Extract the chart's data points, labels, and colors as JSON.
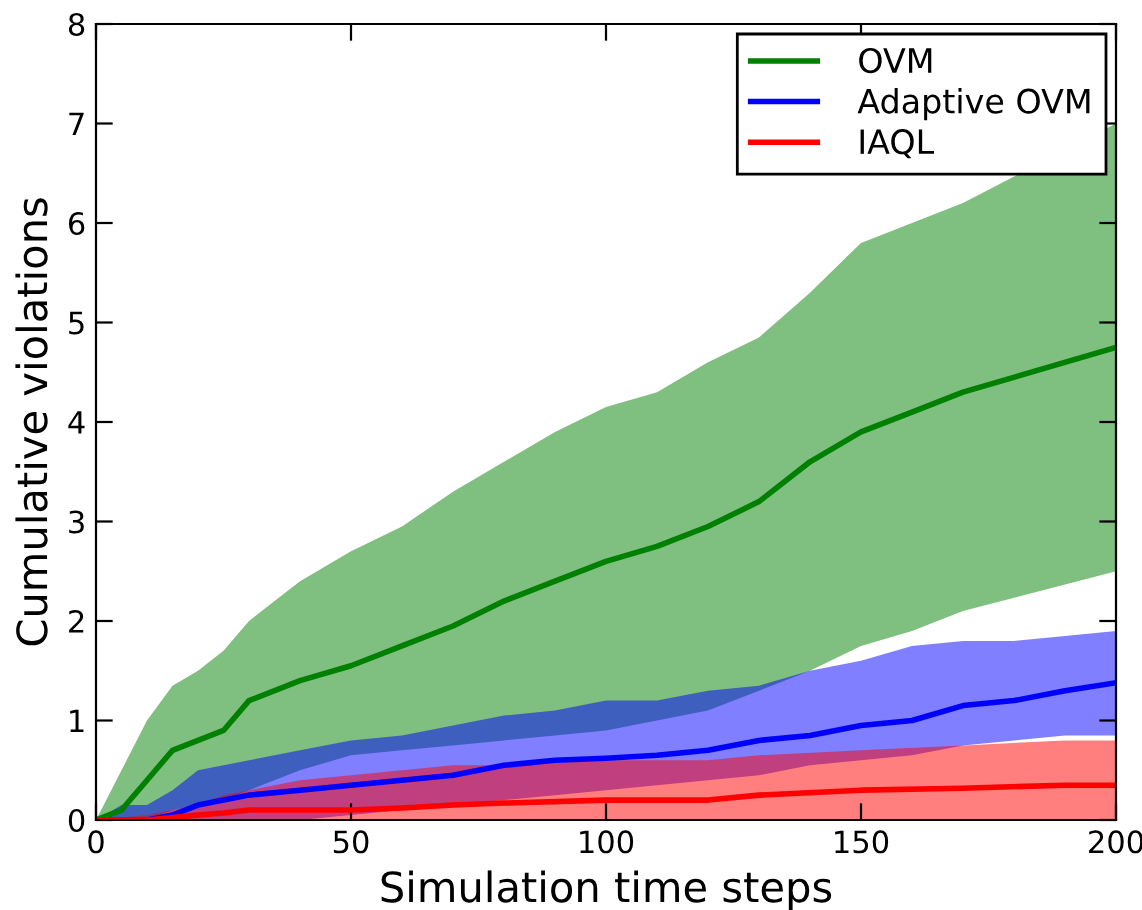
{
  "chart_data": {
    "type": "line",
    "xlabel": "Simulation time steps",
    "ylabel": "Cumulative violations",
    "xlim": [
      0,
      200
    ],
    "xticks": [
      0,
      50,
      100,
      150,
      200
    ],
    "ylim": [
      0,
      8
    ],
    "yticks": [
      0,
      1,
      2,
      3,
      4,
      5,
      6,
      7,
      8
    ],
    "grid": false,
    "legend": "top right",
    "series": [
      {
        "name": "OVM",
        "color": "#008000",
        "x": [
          0,
          5,
          10,
          15,
          20,
          25,
          30,
          40,
          50,
          60,
          70,
          80,
          90,
          100,
          110,
          120,
          130,
          140,
          150,
          160,
          170,
          200
        ],
        "values": [
          0,
          0.1,
          0.4,
          0.7,
          0.8,
          0.9,
          1.2,
          1.4,
          1.55,
          1.75,
          1.95,
          2.2,
          2.4,
          2.6,
          2.75,
          2.95,
          3.2,
          3.6,
          3.9,
          4.1,
          4.3,
          4.75
        ],
        "upper": [
          0,
          0.5,
          1.0,
          1.35,
          1.5,
          1.7,
          2.0,
          2.4,
          2.7,
          2.95,
          3.3,
          3.6,
          3.9,
          4.15,
          4.3,
          4.6,
          4.85,
          5.3,
          5.8,
          6.0,
          6.2,
          7.0
        ],
        "lower": [
          0,
          0,
          0,
          0.1,
          0.15,
          0.2,
          0.3,
          0.5,
          0.65,
          0.7,
          0.75,
          0.8,
          0.85,
          0.9,
          1.0,
          1.1,
          1.3,
          1.5,
          1.75,
          1.9,
          2.1,
          2.5
        ]
      },
      {
        "name": "Adaptive OVM",
        "color": "#0000ff",
        "x": [
          0,
          5,
          10,
          15,
          20,
          25,
          30,
          40,
          50,
          60,
          70,
          80,
          90,
          100,
          110,
          120,
          130,
          140,
          150,
          160,
          170,
          180,
          190,
          200
        ],
        "values": [
          0,
          0,
          0,
          0.05,
          0.15,
          0.2,
          0.25,
          0.3,
          0.35,
          0.4,
          0.45,
          0.55,
          0.6,
          0.62,
          0.65,
          0.7,
          0.8,
          0.85,
          0.95,
          1.0,
          1.15,
          1.2,
          1.3,
          1.38
        ],
        "upper": [
          0,
          0.15,
          0.15,
          0.3,
          0.5,
          0.55,
          0.6,
          0.7,
          0.8,
          0.85,
          0.95,
          1.05,
          1.1,
          1.2,
          1.2,
          1.3,
          1.35,
          1.5,
          1.6,
          1.75,
          1.8,
          1.8,
          1.85,
          1.9
        ],
        "lower": [
          0,
          0,
          0,
          0,
          0,
          0,
          0,
          0,
          0.05,
          0.1,
          0.15,
          0.2,
          0.25,
          0.3,
          0.35,
          0.4,
          0.45,
          0.55,
          0.6,
          0.65,
          0.75,
          0.8,
          0.85,
          0.85
        ]
      },
      {
        "name": "IAQL",
        "color": "#ff0000",
        "x": [
          0,
          10,
          20,
          25,
          30,
          40,
          50,
          60,
          70,
          80,
          100,
          120,
          130,
          150,
          170,
          190,
          200
        ],
        "values": [
          0,
          0,
          0.05,
          0.07,
          0.1,
          0.1,
          0.1,
          0.12,
          0.15,
          0.17,
          0.2,
          0.2,
          0.25,
          0.3,
          0.32,
          0.35,
          0.35
        ],
        "upper": [
          0,
          0.05,
          0.15,
          0.25,
          0.3,
          0.4,
          0.45,
          0.5,
          0.55,
          0.55,
          0.6,
          0.6,
          0.65,
          0.7,
          0.75,
          0.8,
          0.8
        ],
        "lower": [
          0,
          0,
          0,
          0,
          0,
          0,
          0,
          0,
          0,
          0,
          0,
          0,
          0,
          0,
          0,
          0,
          0
        ]
      }
    ]
  }
}
